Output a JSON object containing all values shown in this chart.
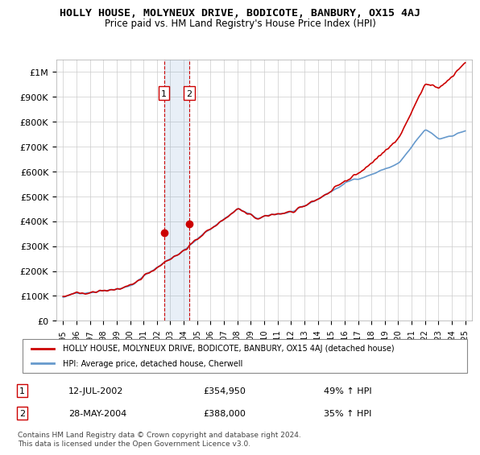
{
  "title": "HOLLY HOUSE, MOLYNEUX DRIVE, BODICOTE, BANBURY, OX15 4AJ",
  "subtitle": "Price paid vs. HM Land Registry's House Price Index (HPI)",
  "legend_house": "HOLLY HOUSE, MOLYNEUX DRIVE, BODICOTE, BANBURY, OX15 4AJ (detached house)",
  "legend_hpi": "HPI: Average price, detached house, Cherwell",
  "footnote": "Contains HM Land Registry data © Crown copyright and database right 2024.\nThis data is licensed under the Open Government Licence v3.0.",
  "transactions": [
    {
      "label": "1",
      "date": "12-JUL-2002",
      "price": 354950,
      "pct": "49% ↑ HPI"
    },
    {
      "label": "2",
      "date": "28-MAY-2004",
      "price": 388000,
      "pct": "35% ↑ HPI"
    }
  ],
  "house_color": "#cc0000",
  "hpi_color": "#6699cc",
  "marker1_x": 2002.53,
  "marker2_x": 2004.41,
  "marker1_y": 354950,
  "marker2_y": 388000,
  "ylim": [
    0,
    1050000
  ],
  "xlim": [
    1994.5,
    2025.5
  ],
  "yticks": [
    0,
    100000,
    200000,
    300000,
    400000,
    500000,
    600000,
    700000,
    800000,
    900000,
    1000000
  ],
  "ytick_labels": [
    "£0",
    "£100K",
    "£200K",
    "£300K",
    "£400K",
    "£500K",
    "£600K",
    "£700K",
    "£800K",
    "£900K",
    "£1M"
  ],
  "xticks": [
    1995,
    1996,
    1997,
    1998,
    1999,
    2000,
    2001,
    2002,
    2003,
    2004,
    2005,
    2006,
    2007,
    2008,
    2009,
    2010,
    2011,
    2012,
    2013,
    2014,
    2015,
    2016,
    2017,
    2018,
    2019,
    2020,
    2021,
    2022,
    2023,
    2024,
    2025
  ]
}
